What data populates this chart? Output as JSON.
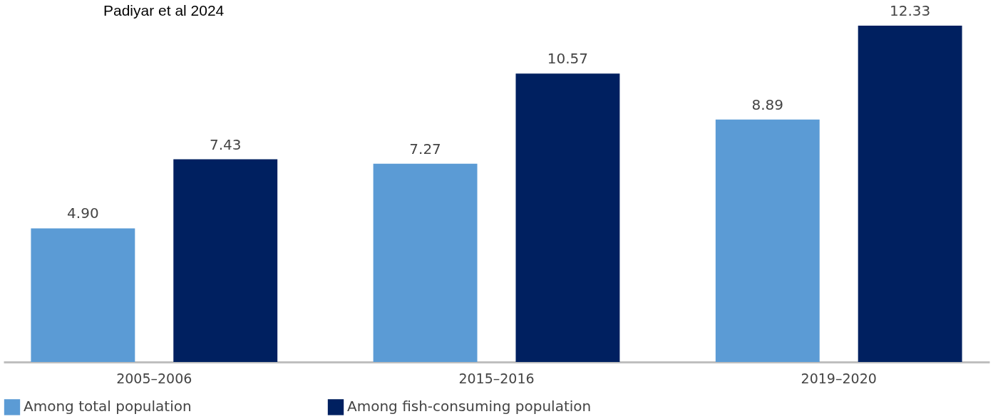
{
  "chart_data": {
    "type": "bar",
    "annotations": [
      "Padiyar et al 2024"
    ],
    "categories": [
      "2005–2006",
      "2015–2016",
      "2019–2020"
    ],
    "series": [
      {
        "name": "Among total population",
        "color": "#5b9bd5",
        "values": [
          4.9,
          7.27,
          8.89
        ],
        "value_labels": [
          "4.90",
          "7.27",
          "8.89"
        ]
      },
      {
        "name": "Among fish-consuming population",
        "color": "#002060",
        "values": [
          7.43,
          10.57,
          12.33
        ],
        "value_labels": [
          "7.43",
          "10.57",
          "12.33"
        ]
      }
    ],
    "legend": "bottom",
    "grid": false
  }
}
